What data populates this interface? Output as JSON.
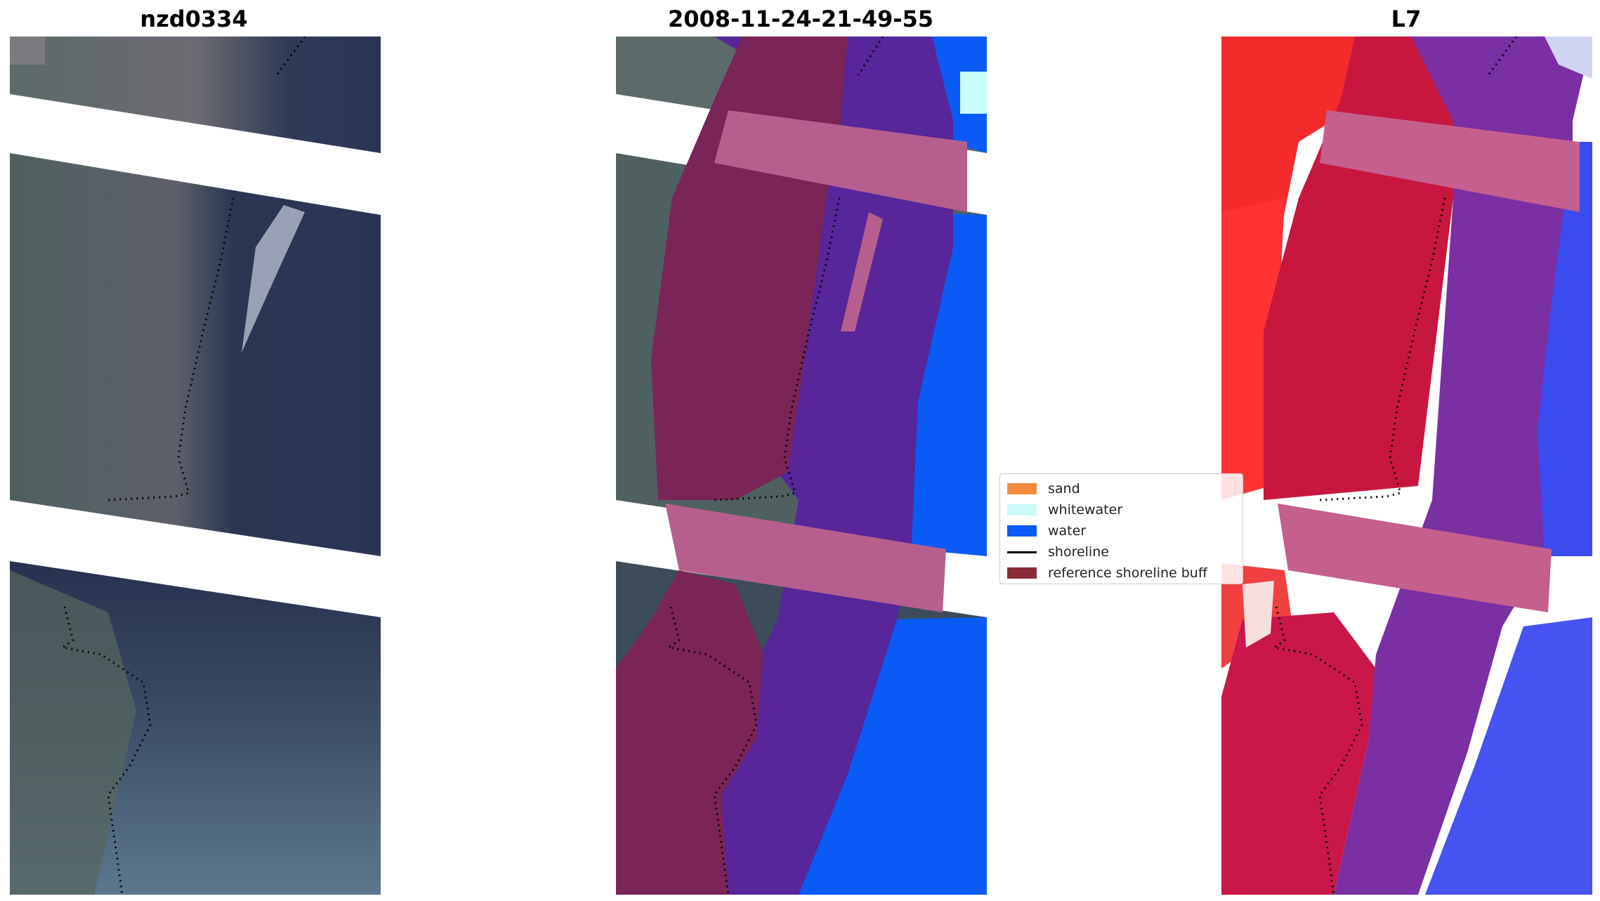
{
  "panels": [
    {
      "title": "nzd0334",
      "image": "rgb-satellite-image"
    },
    {
      "title": "2008-11-24-21-49-55",
      "image": "classified-image"
    },
    {
      "title": "L7",
      "image": "index-image"
    }
  ],
  "legend": {
    "items": [
      {
        "label": "sand",
        "color": "#f58b3d",
        "kind": "patch"
      },
      {
        "label": "whitewater",
        "color": "#c9fbfa",
        "kind": "patch"
      },
      {
        "label": "water",
        "color": "#0a5af5",
        "kind": "patch"
      },
      {
        "label": "shoreline",
        "color": "#000000",
        "kind": "line"
      },
      {
        "label": "reference shoreline buff",
        "color": "#8a2a35",
        "kind": "patch"
      }
    ]
  }
}
